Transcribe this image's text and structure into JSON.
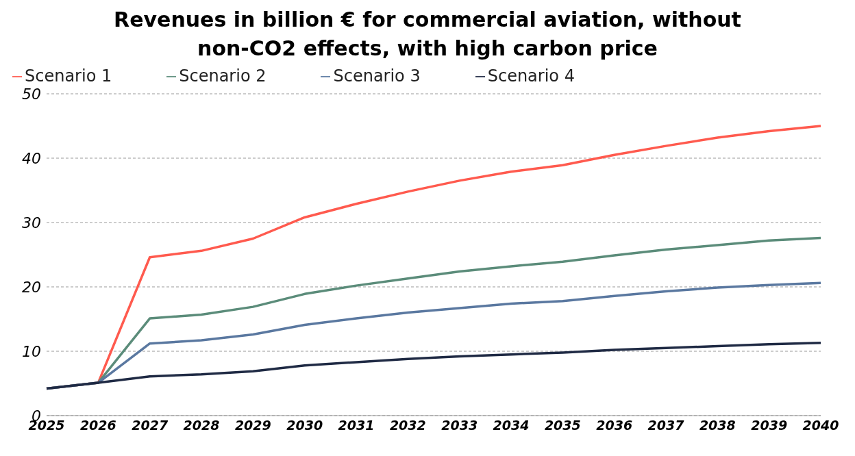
{
  "chart_data": {
    "type": "line",
    "title": "Revenues in billion € for commercial aviation, without non-CO2 effects, with high carbon price",
    "categories": [
      "2025",
      "2026",
      "2027",
      "2028",
      "2029",
      "2030",
      "2031",
      "2032",
      "2033",
      "2034",
      "2035",
      "2036",
      "2037",
      "2038",
      "2039",
      "2040"
    ],
    "series": [
      {
        "name": "Scenario 1",
        "color": "#ff5a4e",
        "values": [
          4.2,
          5.1,
          24.6,
          25.6,
          27.5,
          30.8,
          32.9,
          34.8,
          36.5,
          37.9,
          38.9,
          40.5,
          41.9,
          43.2,
          44.2,
          45.0
        ]
      },
      {
        "name": "Scenario 2",
        "color": "#5b8c7a",
        "values": [
          4.2,
          5.1,
          15.1,
          15.7,
          16.9,
          18.9,
          20.2,
          21.3,
          22.4,
          23.2,
          23.9,
          24.9,
          25.8,
          26.5,
          27.2,
          27.6
        ]
      },
      {
        "name": "Scenario 3",
        "color": "#5a78a0",
        "values": [
          4.2,
          5.1,
          11.2,
          11.7,
          12.6,
          14.1,
          15.1,
          16.0,
          16.7,
          17.4,
          17.8,
          18.6,
          19.3,
          19.9,
          20.3,
          20.6
        ]
      },
      {
        "name": "Scenario 4",
        "color": "#1f2a44",
        "values": [
          4.2,
          5.1,
          6.1,
          6.4,
          6.9,
          7.8,
          8.3,
          8.8,
          9.2,
          9.5,
          9.8,
          10.2,
          10.5,
          10.8,
          11.1,
          11.3
        ]
      }
    ],
    "ylim": [
      0,
      50
    ],
    "yticks": [
      0,
      10,
      20,
      30,
      40,
      50
    ],
    "grid": "y",
    "legend": "top",
    "marker": "none",
    "line_style": "solid"
  }
}
